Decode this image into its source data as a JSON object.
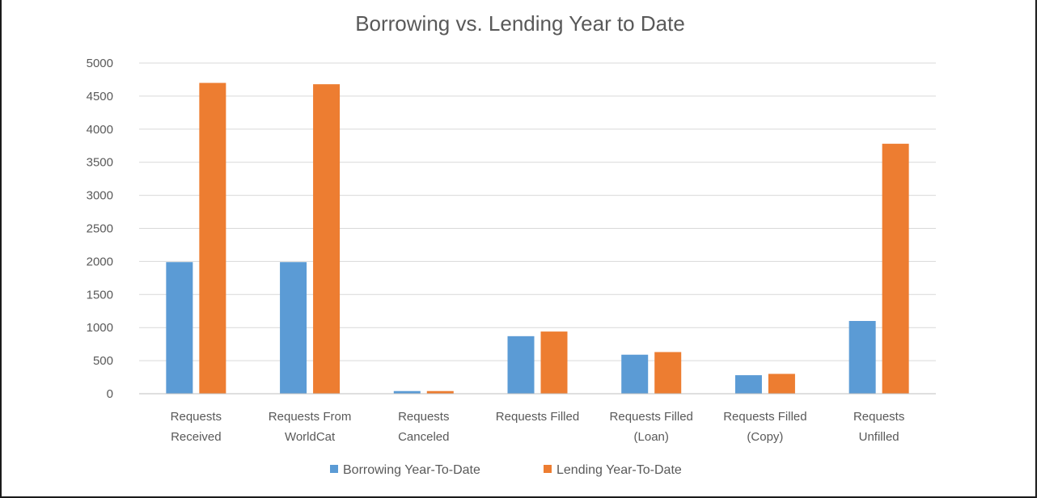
{
  "chart_data": {
    "type": "bar",
    "title": "Borrowing vs. Lending Year to Date",
    "xlabel": "",
    "ylabel": "",
    "ylim": [
      0,
      5000
    ],
    "yticks": [
      0,
      500,
      1000,
      1500,
      2000,
      2500,
      3000,
      3500,
      4000,
      4500,
      5000
    ],
    "grid": true,
    "legend_position": "bottom",
    "categories": [
      [
        "Requests",
        "Received"
      ],
      [
        "Requests From",
        "WorldCat"
      ],
      [
        "Requests",
        "Canceled"
      ],
      [
        "Requests Filled"
      ],
      [
        "Requests Filled",
        "(Loan)"
      ],
      [
        "Requests Filled",
        "(Copy)"
      ],
      [
        "Requests",
        "Unfilled"
      ]
    ],
    "series": [
      {
        "name": "Borrowing Year-To-Date",
        "color": "#5b9bd5",
        "values": [
          1990,
          1990,
          40,
          870,
          590,
          280,
          1100
        ]
      },
      {
        "name": "Lending Year-To-Date",
        "color": "#ed7d31",
        "values": [
          4700,
          4680,
          40,
          940,
          630,
          300,
          3780
        ]
      }
    ]
  }
}
